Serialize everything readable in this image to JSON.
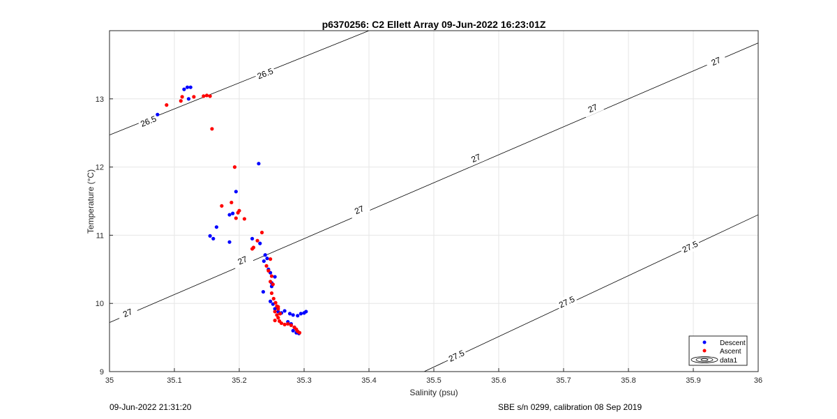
{
  "chart_data": {
    "type": "scatter",
    "title": "p6370256: C2 Ellett Array 09-Jun-2022 16:23:01Z",
    "xlabel": "Salinity (psu)",
    "ylabel": "Temperature (°C)",
    "xlim": [
      35,
      36
    ],
    "ylim": [
      9,
      14
    ],
    "xticks": [
      "35",
      "35.1",
      "35.2",
      "35.3",
      "35.4",
      "35.5",
      "35.6",
      "35.7",
      "35.8",
      "35.9",
      "36"
    ],
    "yticks": [
      "9",
      "10",
      "11",
      "12",
      "13"
    ],
    "grid": true,
    "legend_position": "bottom-right",
    "density_contours": [
      {
        "level": "26.5",
        "segments": [
          [
            35.0,
            12.47,
            35.4,
            14.0
          ]
        ],
        "labels": [
          {
            "x": 35.06,
            "y": 12.67
          },
          {
            "x": 35.24,
            "y": 13.37
          }
        ]
      },
      {
        "level": "27",
        "segments": [
          [
            35.0,
            9.72,
            36.0,
            13.82
          ]
        ],
        "labels": [
          {
            "x": 35.028,
            "y": 9.86
          },
          {
            "x": 35.205,
            "y": 10.63
          },
          {
            "x": 35.385,
            "y": 11.37
          },
          {
            "x": 35.565,
            "y": 12.13
          },
          {
            "x": 35.745,
            "y": 12.86
          },
          {
            "x": 35.935,
            "y": 13.55
          }
        ]
      },
      {
        "level": "27.5",
        "segments": [
          [
            35.485,
            9.0,
            36.0,
            11.3
          ]
        ],
        "labels": [
          {
            "x": 35.535,
            "y": 9.23
          },
          {
            "x": 35.705,
            "y": 10.02
          },
          {
            "x": 35.895,
            "y": 10.83
          }
        ]
      }
    ],
    "series": [
      {
        "name": "Descent",
        "color": "#0000ff",
        "points": [
          [
            35.074,
            12.77
          ],
          [
            35.115,
            13.14
          ],
          [
            35.12,
            13.17
          ],
          [
            35.125,
            13.17
          ],
          [
            35.122,
            13.0
          ],
          [
            35.23,
            12.05
          ],
          [
            35.195,
            11.64
          ],
          [
            35.19,
            11.32
          ],
          [
            35.185,
            11.3
          ],
          [
            35.165,
            11.12
          ],
          [
            35.155,
            10.99
          ],
          [
            35.16,
            10.95
          ],
          [
            35.185,
            10.9
          ],
          [
            35.22,
            10.95
          ],
          [
            35.232,
            10.88
          ],
          [
            35.24,
            10.71
          ],
          [
            35.243,
            10.66
          ],
          [
            35.238,
            10.62
          ],
          [
            35.245,
            10.5
          ],
          [
            35.248,
            10.45
          ],
          [
            35.25,
            10.3
          ],
          [
            35.255,
            10.39
          ],
          [
            35.25,
            10.25
          ],
          [
            35.237,
            10.17
          ],
          [
            35.248,
            10.03
          ],
          [
            35.252,
            9.99
          ],
          [
            35.255,
            9.92
          ],
          [
            35.26,
            9.88
          ],
          [
            35.265,
            9.86
          ],
          [
            35.27,
            9.89
          ],
          [
            35.278,
            9.85
          ],
          [
            35.283,
            9.83
          ],
          [
            35.29,
            9.82
          ],
          [
            35.295,
            9.85
          ],
          [
            35.3,
            9.86
          ],
          [
            35.303,
            9.88
          ],
          [
            35.275,
            9.73
          ],
          [
            35.28,
            9.7
          ],
          [
            35.285,
            9.65
          ],
          [
            35.283,
            9.6
          ],
          [
            35.288,
            9.57
          ],
          [
            35.292,
            9.56
          ]
        ]
      },
      {
        "name": "Ascent",
        "color": "#ff0000",
        "points": [
          [
            35.088,
            12.91
          ],
          [
            35.11,
            12.97
          ],
          [
            35.112,
            13.03
          ],
          [
            35.13,
            13.03
          ],
          [
            35.145,
            13.04
          ],
          [
            35.15,
            13.05
          ],
          [
            35.155,
            13.04
          ],
          [
            35.158,
            12.56
          ],
          [
            35.193,
            12.0
          ],
          [
            35.188,
            11.48
          ],
          [
            35.173,
            11.43
          ],
          [
            35.2,
            11.36
          ],
          [
            35.198,
            11.33
          ],
          [
            35.195,
            11.25
          ],
          [
            35.208,
            11.24
          ],
          [
            35.235,
            11.04
          ],
          [
            35.228,
            10.92
          ],
          [
            35.222,
            10.82
          ],
          [
            35.22,
            10.8
          ],
          [
            35.248,
            10.65
          ],
          [
            35.242,
            10.55
          ],
          [
            35.245,
            10.48
          ],
          [
            35.25,
            10.4
          ],
          [
            35.248,
            10.32
          ],
          [
            35.252,
            10.28
          ],
          [
            35.25,
            10.15
          ],
          [
            35.253,
            10.07
          ],
          [
            35.256,
            10.01
          ],
          [
            35.258,
            9.96
          ],
          [
            35.26,
            9.92
          ],
          [
            35.255,
            9.88
          ],
          [
            35.258,
            9.83
          ],
          [
            35.26,
            9.79
          ],
          [
            35.262,
            9.74
          ],
          [
            35.265,
            9.71
          ],
          [
            35.27,
            9.69
          ],
          [
            35.275,
            9.7
          ],
          [
            35.28,
            9.68
          ],
          [
            35.285,
            9.65
          ],
          [
            35.288,
            9.62
          ],
          [
            35.29,
            9.59
          ],
          [
            35.293,
            9.57
          ],
          [
            35.255,
            9.75
          ],
          [
            35.26,
            9.95
          ],
          [
            35.263,
            9.85
          ]
        ]
      }
    ],
    "legend_entries": [
      "Descent",
      "Ascent",
      "data1"
    ]
  },
  "footer": {
    "left": "09-Jun-2022 21:31:20",
    "right": "SBE s/n 0299, calibration 08 Sep 2019"
  }
}
